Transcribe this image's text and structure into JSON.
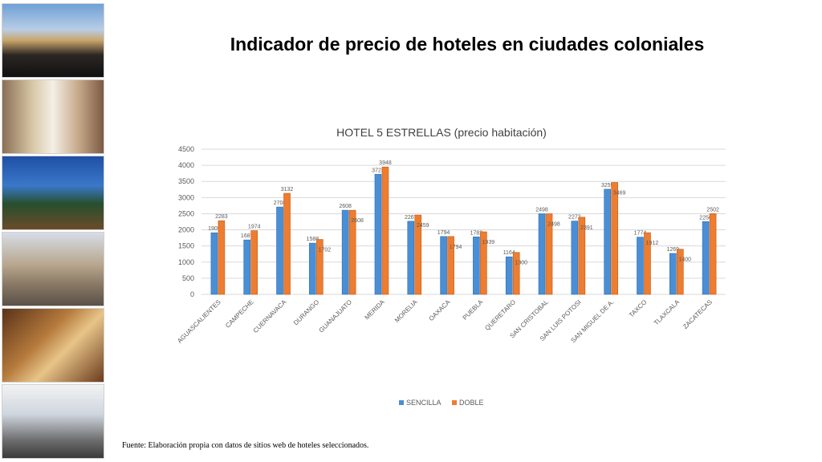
{
  "title": "Indicador de precio de hoteles en ciudades coloniales",
  "source": "Fuente: Elaboración propia con datos de sitios web de hoteles seleccionados.",
  "photos": [
    {
      "name": "rooftop-pool-photo"
    },
    {
      "name": "street-crowd-photo"
    },
    {
      "name": "terrace-panorama-photo"
    },
    {
      "name": "church-plaza-photo"
    },
    {
      "name": "hotel-room-photo"
    },
    {
      "name": "tourists-walking-photo"
    }
  ],
  "colors": {
    "sencilla": "#4a8fd6",
    "doble": "#ed7d31",
    "grid": "#d9d9d9",
    "axis_text": "#595959"
  },
  "chart_data": {
    "type": "bar",
    "title": "HOTEL 5 ESTRELLAS (precio habitación)",
    "categories": [
      "AGUASCALIENTES",
      "CAMPECHE",
      "CUERNAVACA",
      "DURANGO",
      "GUANAJUATO",
      "MERIDA",
      "MORELIA",
      "OAXACA",
      "PUEBLA",
      "QUERETARO",
      "SAN CRISTOBAL",
      "SAN LUIS POTOSI",
      "SAN MIGUEL DE A.",
      "TAXCO",
      "TLAXCALA",
      "ZACATECAS"
    ],
    "series": [
      {
        "name": "SENCILLA",
        "values": [
          1909,
          1687,
          2708,
          1588,
          2608,
          3723,
          2267,
          1794,
          1782,
          1164,
          2498,
          2272,
          3259,
          1774,
          1269,
          2256
        ]
      },
      {
        "name": "DOBLE",
        "values": [
          2283,
          1974,
          3132,
          1702,
          2608,
          3948,
          2459,
          1794,
          1939,
          1300,
          2498,
          2391,
          3469,
          1912,
          1400,
          2502
        ]
      }
    ],
    "yticks": [
      "0",
      "500",
      "1000",
      "1500",
      "2000",
      "2500",
      "3000",
      "3500",
      "4000",
      "4500"
    ],
    "ylim": [
      0,
      4500
    ],
    "grid": true,
    "legend": "bottom"
  }
}
